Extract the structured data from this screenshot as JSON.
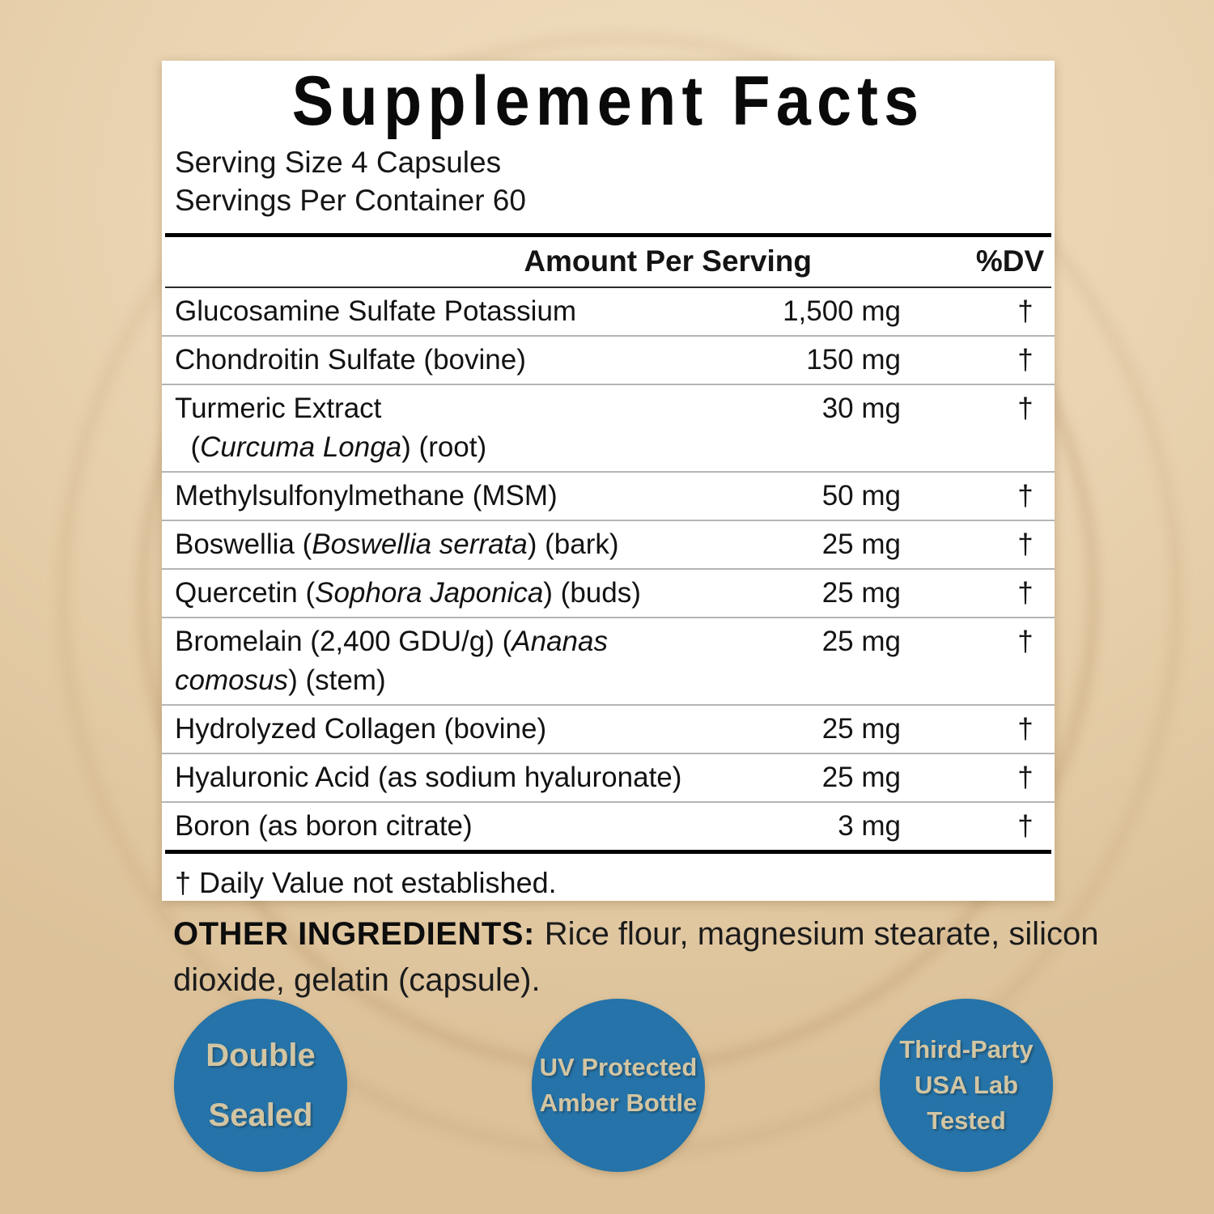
{
  "colors": {
    "background_center": "#f0debf",
    "background_edge": "#dcc199",
    "panel_background": "#ffffff",
    "text": "#141414",
    "separator_light": "#b5b5b5",
    "separator_dark": "#000000",
    "badge_background": "#2573a8",
    "badge_text": "#d3c5a2"
  },
  "panel": {
    "title": "Supplement Facts",
    "serving_size": "Serving Size 4 Capsules",
    "servings_per_container": "Servings Per Container 60",
    "columns": {
      "amount": "Amount Per Serving",
      "dv": "%DV"
    },
    "rows": [
      {
        "lines": [
          [
            {
              "t": "Glucosamine Sulfate Potassium"
            }
          ]
        ],
        "amount": "1,500 mg",
        "dv": "†"
      },
      {
        "lines": [
          [
            {
              "t": "Chondroitin Sulfate (bovine)"
            }
          ]
        ],
        "amount": "150 mg",
        "dv": "†"
      },
      {
        "lines": [
          [
            {
              "t": "Turmeric Extract"
            }
          ],
          [
            {
              "t": "  ("
            },
            {
              "t": "Curcuma Longa",
              "i": true
            },
            {
              "t": ") (root)"
            }
          ]
        ],
        "amount": "30 mg",
        "dv": "†"
      },
      {
        "lines": [
          [
            {
              "t": "Methylsulfonylmethane (MSM)"
            }
          ]
        ],
        "amount": "50 mg",
        "dv": "†"
      },
      {
        "lines": [
          [
            {
              "t": "Boswellia ("
            },
            {
              "t": "Boswellia serrata",
              "i": true
            },
            {
              "t": ") (bark)"
            }
          ]
        ],
        "amount": "25 mg",
        "dv": "†"
      },
      {
        "lines": [
          [
            {
              "t": "Quercetin ("
            },
            {
              "t": "Sophora Japonica",
              "i": true
            },
            {
              "t": ") (buds)"
            }
          ]
        ],
        "amount": "25 mg",
        "dv": "†"
      },
      {
        "lines": [
          [
            {
              "t": "Bromelain (2,400 GDU/g) ("
            },
            {
              "t": "Ananas",
              "i": true
            }
          ],
          [
            {
              "t": "comosus",
              "i": true
            },
            {
              "t": ") (stem)"
            }
          ]
        ],
        "amount": "25 mg",
        "dv": "†"
      },
      {
        "lines": [
          [
            {
              "t": "Hydrolyzed Collagen (bovine)"
            }
          ]
        ],
        "amount": "25 mg",
        "dv": "†"
      },
      {
        "lines": [
          [
            {
              "t": "Hyaluronic Acid (as sodium hyaluronate)"
            }
          ]
        ],
        "amount": "25 mg",
        "dv": "†"
      },
      {
        "lines": [
          [
            {
              "t": "Boron (as boron citrate)"
            }
          ]
        ],
        "amount": "3 mg",
        "dv": "†"
      }
    ],
    "footnote": "† Daily Value not established."
  },
  "other_ingredients": {
    "label": "OTHER INGREDIENTS:",
    "text": "Rice flour, magnesium stearate, silicon dioxide, gelatin (capsule)."
  },
  "badges": [
    {
      "name": "double-sealed-badge",
      "lines": [
        "Double",
        "Sealed"
      ]
    },
    {
      "name": "uv-protected-amber-bottle-badge",
      "lines": [
        "UV Protected",
        "Amber Bottle"
      ]
    },
    {
      "name": "third-party-usa-lab-tested-badge",
      "lines": [
        "Third-Party",
        "USA Lab",
        "Tested"
      ]
    }
  ]
}
